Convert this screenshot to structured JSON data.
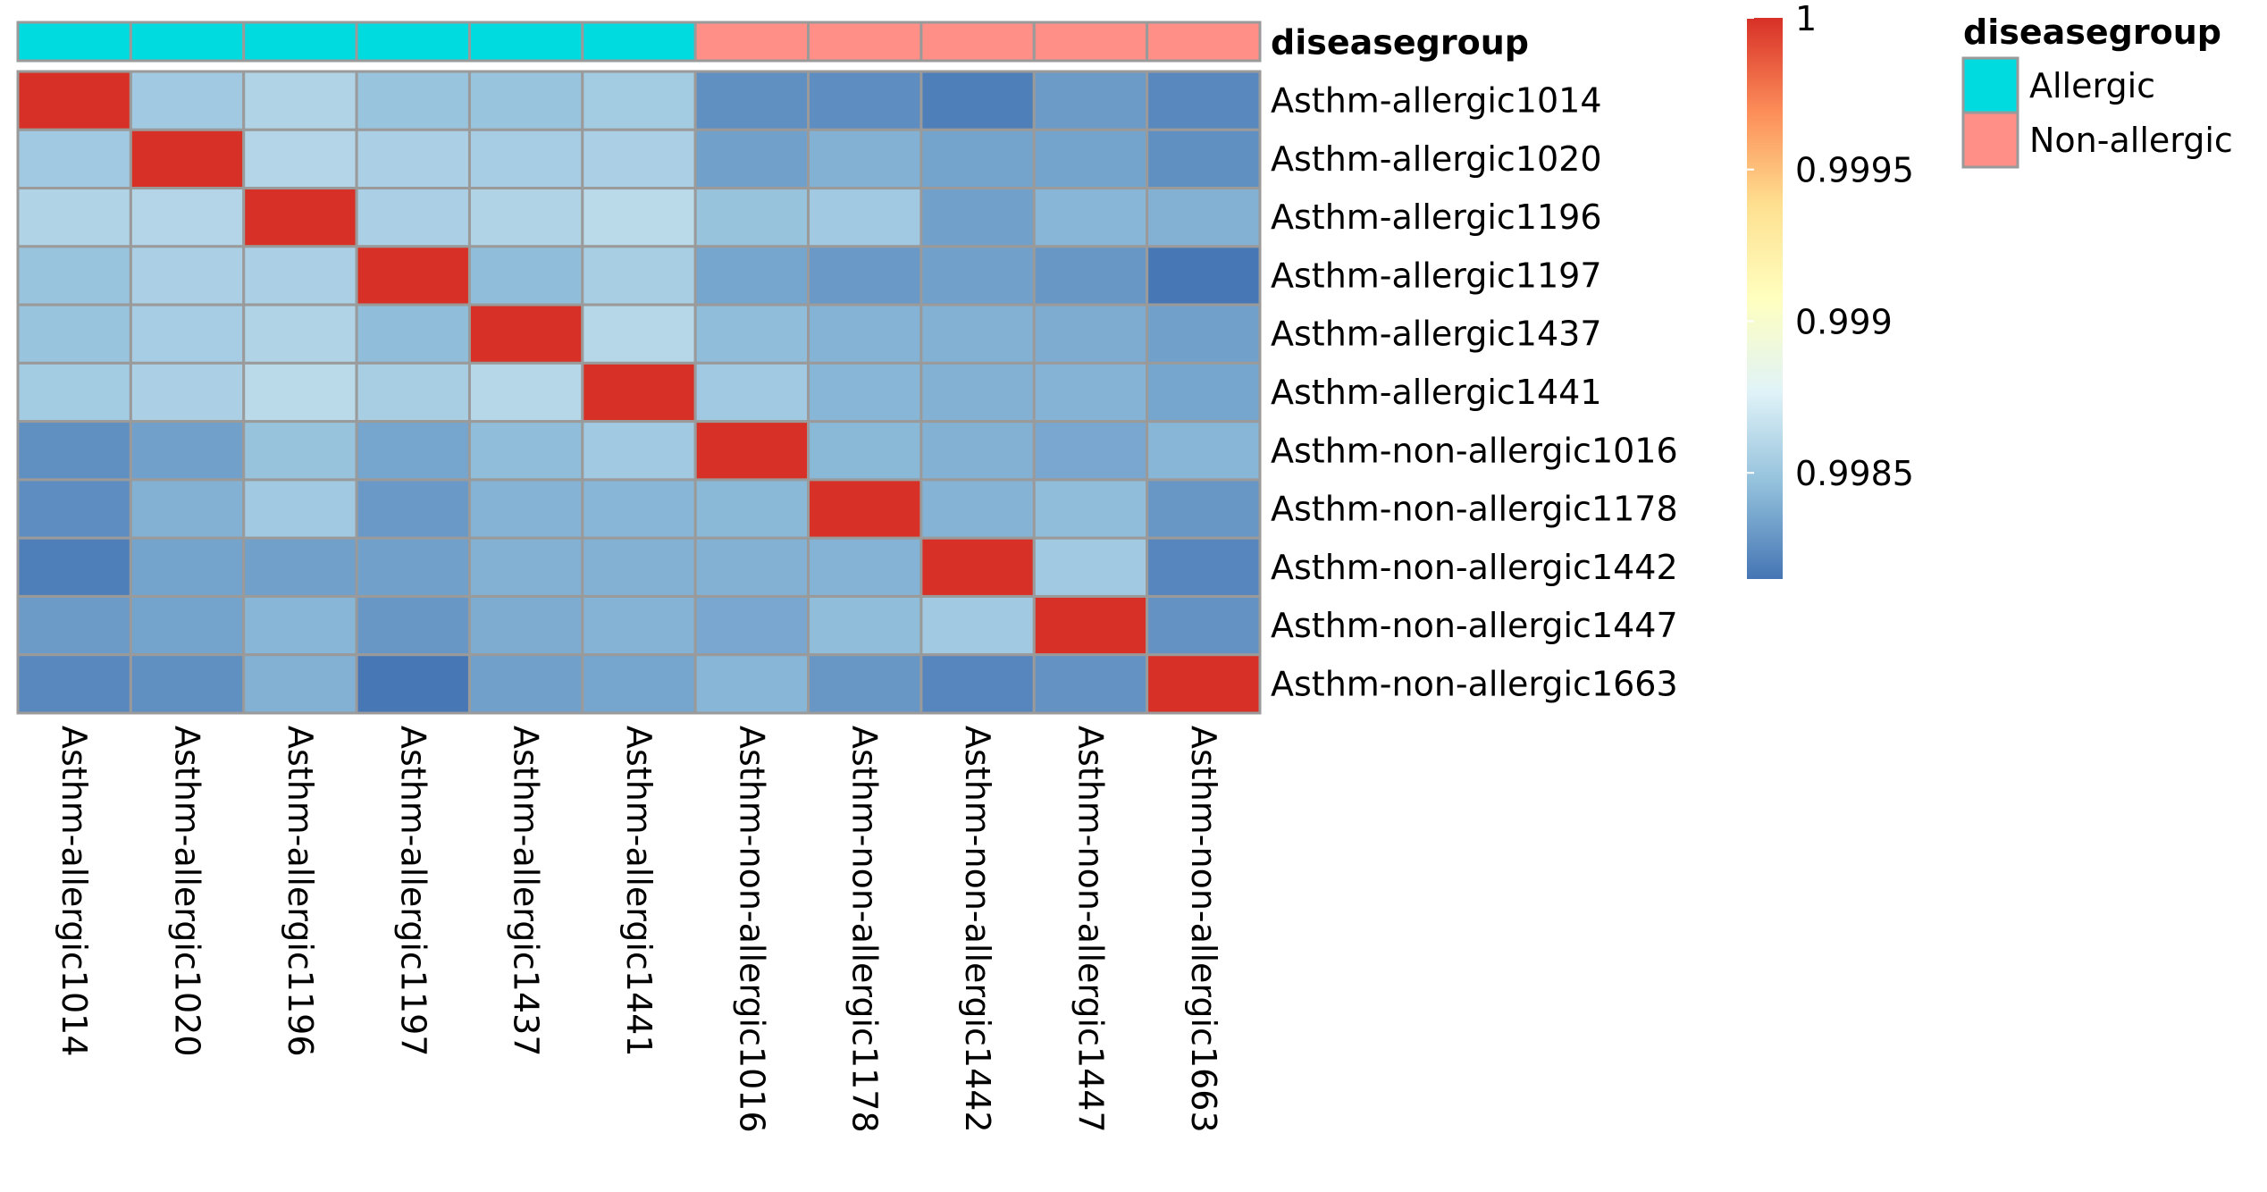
{
  "chart_data": {
    "type": "heatmap",
    "rows": [
      "Asthm-allergic1014",
      "Asthm-allergic1020",
      "Asthm-allergic1196",
      "Asthm-allergic1197",
      "Asthm-allergic1437",
      "Asthm-allergic1441",
      "Asthm-non-allergic1016",
      "Asthm-non-allergic1178",
      "Asthm-non-allergic1442",
      "Asthm-non-allergic1447",
      "Asthm-non-allergic1663"
    ],
    "columns": [
      "Asthm-allergic1014",
      "Asthm-allergic1020",
      "Asthm-allergic1196",
      "Asthm-allergic1197",
      "Asthm-allergic1437",
      "Asthm-allergic1441",
      "Asthm-non-allergic1016",
      "Asthm-non-allergic1178",
      "Asthm-non-allergic1442",
      "Asthm-non-allergic1447",
      "Asthm-non-allergic1663"
    ],
    "values": [
      [
        1,
        0.99852,
        0.99858,
        0.99849,
        0.99849,
        0.99853,
        0.99826,
        0.99825,
        0.99819,
        0.99831,
        0.99823
      ],
      [
        0.99852,
        1,
        0.99859,
        0.99856,
        0.99854,
        0.99856,
        0.99833,
        0.9984,
        0.99834,
        0.99834,
        0.99826
      ],
      [
        0.99858,
        0.99859,
        1,
        0.99856,
        0.99858,
        0.99862,
        0.99848,
        0.99852,
        0.99833,
        0.99842,
        0.9984
      ],
      [
        0.99849,
        0.99856,
        0.99856,
        1,
        0.99845,
        0.99855,
        0.99835,
        0.9983,
        0.99833,
        0.99829,
        0.99816
      ],
      [
        0.99849,
        0.99854,
        0.99858,
        0.99845,
        1,
        0.9986,
        0.99845,
        0.99841,
        0.9984,
        0.99838,
        0.99833
      ],
      [
        0.99853,
        0.99856,
        0.99862,
        0.99855,
        0.9986,
        1,
        0.99852,
        0.99842,
        0.9984,
        0.99841,
        0.99835
      ],
      [
        0.99826,
        0.99833,
        0.99848,
        0.99835,
        0.99845,
        0.99852,
        1,
        0.99843,
        0.9984,
        0.99836,
        0.99842
      ],
      [
        0.99825,
        0.9984,
        0.99852,
        0.9983,
        0.99841,
        0.99842,
        0.99843,
        1,
        0.99841,
        0.99845,
        0.99829
      ],
      [
        0.99819,
        0.99834,
        0.99833,
        0.99833,
        0.9984,
        0.9984,
        0.9984,
        0.99841,
        1,
        0.99852,
        0.99822
      ],
      [
        0.99831,
        0.99834,
        0.99842,
        0.99829,
        0.99838,
        0.99841,
        0.99836,
        0.99845,
        0.99852,
        1,
        0.99827
      ],
      [
        0.99823,
        0.99826,
        0.9984,
        0.99816,
        0.99833,
        0.99835,
        0.99842,
        0.99829,
        0.99822,
        0.99827,
        1
      ]
    ],
    "color_scale": {
      "min": 0.99815,
      "max": 1.0,
      "ticks": [
        1,
        0.9995,
        0.999,
        0.9985
      ],
      "tick_labels": [
        "1",
        "0.9995",
        "0.999",
        "0.9985"
      ],
      "stops": [
        "#4575B4",
        "#91BFDB",
        "#E0F3F8",
        "#FFFFBF",
        "#FEE090",
        "#FC8D59",
        "#D73027"
      ]
    },
    "annotation": {
      "title": "diseasegroup",
      "groups": [
        "Allergic",
        "Allergic",
        "Allergic",
        "Allergic",
        "Allergic",
        "Allergic",
        "Non-allergic",
        "Non-allergic",
        "Non-allergic",
        "Non-allergic",
        "Non-allergic"
      ],
      "legend": [
        {
          "label": "Allergic",
          "color": "#00DBE0"
        },
        {
          "label": "Non-allergic",
          "color": "#FF8F87"
        }
      ]
    },
    "grid": true
  }
}
